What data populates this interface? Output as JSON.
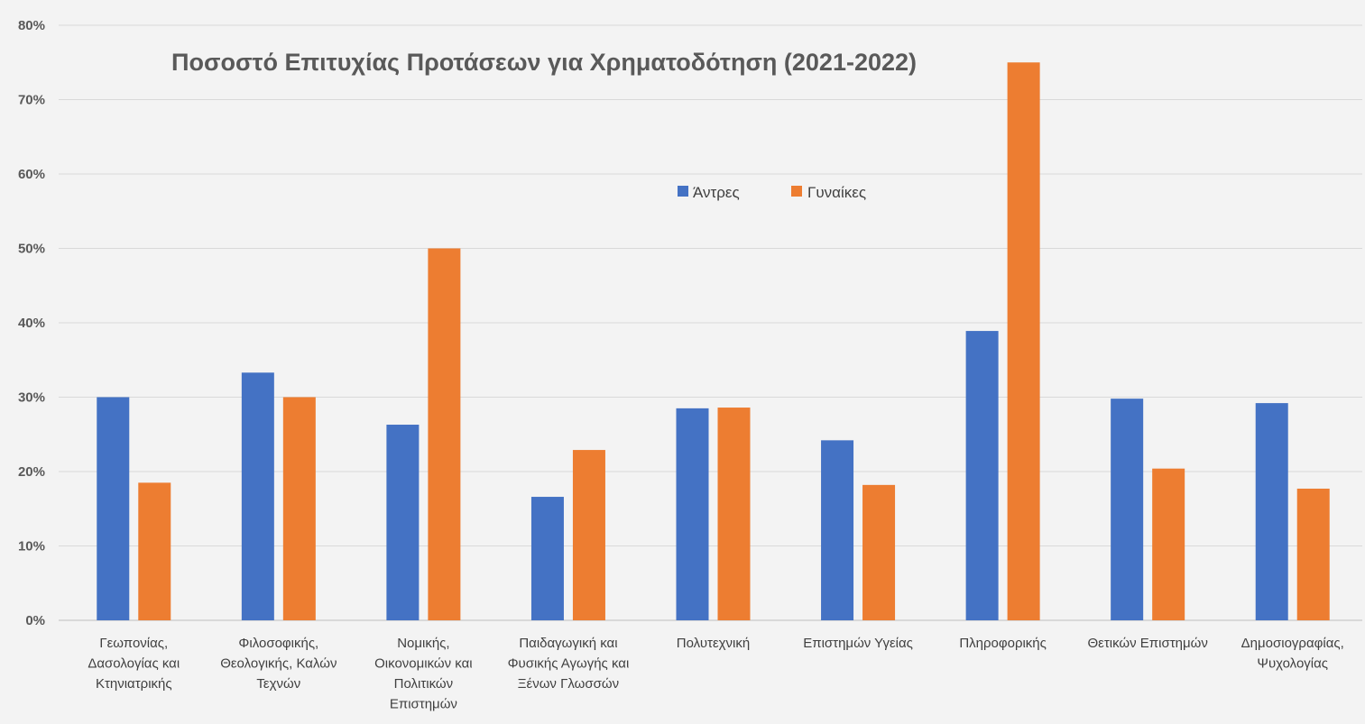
{
  "chart_data": {
    "type": "bar",
    "title": "Ποσοστό Επιτυχίας Προτάσεων για Χρηματοδότηση (2021-2022)",
    "xlabel": "",
    "ylabel": "",
    "ylim": [
      0,
      80
    ],
    "yticks": [
      "0%",
      "10%",
      "20%",
      "30%",
      "40%",
      "50%",
      "60%",
      "70%",
      "80%"
    ],
    "grid": true,
    "legend_position": "top-center",
    "categories": [
      [
        "Γεωπονίας,",
        "Δασολογίας και",
        "Κτηνιατρικής"
      ],
      [
        "Φιλοσοφικής,",
        "Θεολογικής, Καλών",
        "Τεχνών"
      ],
      [
        "Νομικής,",
        "Οικονομικών και",
        "Πολιτικών",
        "Επιστημών"
      ],
      [
        "Παιδαγωγική και",
        "Φυσικής Αγωγής και",
        "Ξένων Γλωσσών"
      ],
      [
        "Πολυτεχνική"
      ],
      [
        "Επιστημών Υγείας"
      ],
      [
        "Πληροφορικής"
      ],
      [
        "Θετικών Επιστημών"
      ],
      [
        "Δημοσιογραφίας,",
        "Ψυχολογίας"
      ]
    ],
    "series": [
      {
        "name": "Άντρες",
        "color": "#4472c4",
        "values": [
          30.0,
          33.3,
          26.3,
          16.6,
          28.5,
          24.2,
          38.9,
          29.8,
          29.2
        ]
      },
      {
        "name": "Γυναίκες",
        "color": "#ed7d31",
        "values": [
          18.5,
          30.0,
          50.0,
          22.9,
          28.6,
          18.2,
          75.0,
          20.4,
          17.7
        ]
      }
    ]
  }
}
